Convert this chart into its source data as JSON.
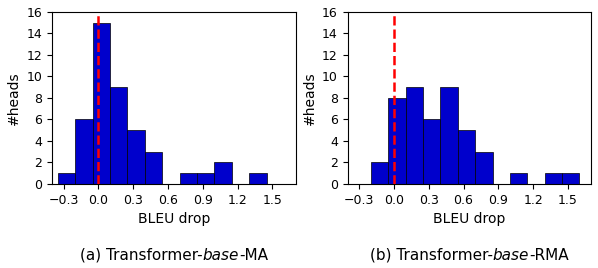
{
  "plot_a": {
    "xlabel": "BLEU drop",
    "ylabel": "#heads",
    "xlim": [
      -0.4,
      1.7
    ],
    "ylim": [
      0,
      16
    ],
    "xticks": [
      -0.3,
      0.0,
      0.3,
      0.6,
      0.9,
      1.2,
      1.5
    ],
    "yticks": [
      0,
      2,
      4,
      6,
      8,
      10,
      12,
      14,
      16
    ],
    "vline": 0.0,
    "bar_color": "#0000cc",
    "bar_edgecolor": "black",
    "bin_edges": [
      -0.35,
      -0.2,
      -0.05,
      0.1,
      0.25,
      0.4,
      0.55,
      0.7,
      0.85,
      1.0,
      1.15,
      1.3,
      1.45,
      1.6
    ],
    "counts": [
      1,
      6,
      15,
      9,
      5,
      3,
      0,
      1,
      1,
      2,
      0,
      1,
      0
    ],
    "caption_normal_1": "(a) Transformer-",
    "caption_italic": "base",
    "caption_normal_2": "-MA"
  },
  "plot_b": {
    "xlabel": "BLEU drop",
    "ylabel": "#heads",
    "xlim": [
      -0.4,
      1.7
    ],
    "ylim": [
      0,
      16
    ],
    "xticks": [
      -0.3,
      0.0,
      0.3,
      0.6,
      0.9,
      1.2,
      1.5
    ],
    "yticks": [
      0,
      2,
      4,
      6,
      8,
      10,
      12,
      14,
      16
    ],
    "vline": 0.0,
    "bar_color": "#0000cc",
    "bar_edgecolor": "black",
    "bin_edges": [
      -0.35,
      -0.2,
      -0.05,
      0.1,
      0.25,
      0.4,
      0.55,
      0.7,
      0.85,
      1.0,
      1.15,
      1.3,
      1.45,
      1.6
    ],
    "counts": [
      0,
      2,
      8,
      9,
      6,
      9,
      5,
      3,
      0,
      1,
      0,
      1,
      1
    ],
    "caption_normal_1": "(b) Transformer-",
    "caption_italic": "base",
    "caption_normal_2": "-RMA"
  },
  "caption_fontsize": 11,
  "figsize": [
    5.98,
    2.68
  ],
  "dpi": 100
}
